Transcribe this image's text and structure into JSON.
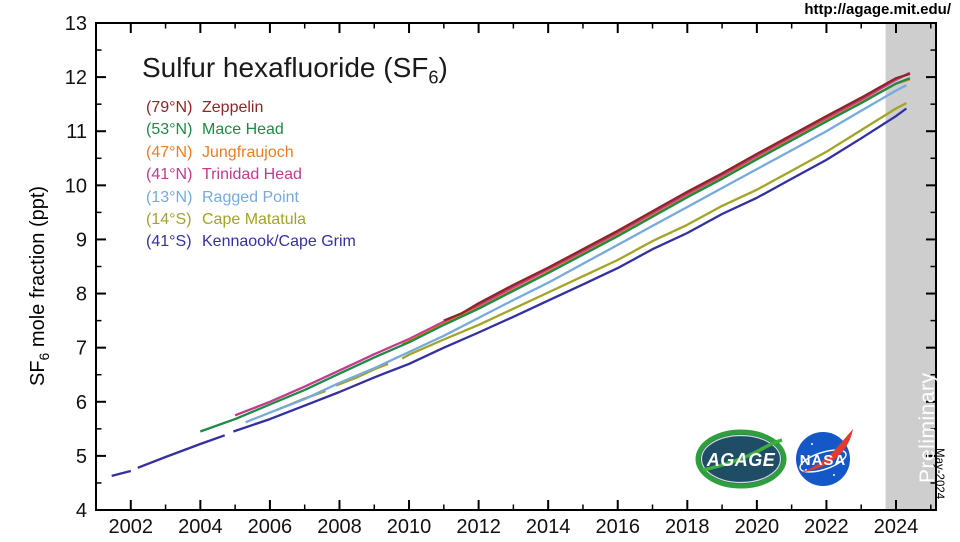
{
  "header": {
    "url": "http://agage.mit.edu/"
  },
  "title": {
    "pre": "Sulfur hexafluoride (SF",
    "sub": "6",
    "post": ")"
  },
  "ylabel": {
    "pre": "SF",
    "sub": "6",
    "post": " mole fraction (ppt)"
  },
  "watermark": {
    "preliminary": "Preliminary",
    "date_note": "May-2024"
  },
  "logos": {
    "agage": "AGAGE",
    "nasa": "NASA"
  },
  "chart_data": {
    "type": "line",
    "title": "Sulfur hexafluoride (SF6)",
    "xlabel": "",
    "ylabel": "SF6 mole fraction (ppt)",
    "xlim": [
      2001,
      2025.15
    ],
    "ylim": [
      4,
      13
    ],
    "grid": false,
    "legend_position": "upper-left-inside",
    "xticks": [
      2002,
      2004,
      2006,
      2008,
      2010,
      2012,
      2014,
      2016,
      2018,
      2020,
      2022,
      2024
    ],
    "xticks_minor": [
      2003,
      2005,
      2007,
      2009,
      2011,
      2013,
      2015,
      2017,
      2019,
      2021,
      2023,
      2025
    ],
    "yticks": [
      4,
      5,
      6,
      7,
      8,
      9,
      10,
      11,
      12,
      13
    ],
    "yticks_minor": [
      4.5,
      5.5,
      6.5,
      7.5,
      8.5,
      9.5,
      10.5,
      11.5,
      12.5
    ],
    "preliminary_band": {
      "from": 2023.7,
      "to": 2025.15,
      "color": "#cecece",
      "label": "Preliminary"
    },
    "series": [
      {
        "station": "Zeppelin",
        "lat_label": "(79°N)",
        "color": "#8e2525",
        "segments": [
          [
            [
              2011.0,
              7.5
            ],
            [
              2011.5,
              7.63
            ],
            [
              2012,
              7.82
            ],
            [
              2013,
              8.16
            ],
            [
              2014,
              8.48
            ],
            [
              2015,
              8.82
            ],
            [
              2016,
              9.16
            ],
            [
              2017,
              9.52
            ],
            [
              2018,
              9.88
            ],
            [
              2019,
              10.22
            ],
            [
              2020,
              10.58
            ],
            [
              2021,
              10.93
            ],
            [
              2022,
              11.28
            ],
            [
              2023,
              11.62
            ],
            [
              2023.5,
              11.8
            ],
            [
              2024,
              11.98
            ],
            [
              2024.4,
              12.06
            ]
          ]
        ]
      },
      {
        "station": "Mace Head",
        "lat_label": "(53°N)",
        "color": "#1d8a46",
        "segments": [
          [
            [
              2004,
              5.45
            ],
            [
              2005,
              5.68
            ],
            [
              2006,
              5.95
            ],
            [
              2007,
              6.22
            ],
            [
              2008,
              6.52
            ],
            [
              2009,
              6.82
            ],
            [
              2010,
              7.1
            ],
            [
              2011,
              7.42
            ],
            [
              2012,
              7.72
            ],
            [
              2013,
              8.05
            ],
            [
              2014,
              8.38
            ],
            [
              2015,
              8.72
            ],
            [
              2016,
              9.06
            ],
            [
              2017,
              9.42
            ],
            [
              2018,
              9.78
            ],
            [
              2019,
              10.12
            ],
            [
              2020,
              10.48
            ],
            [
              2021,
              10.83
            ],
            [
              2022,
              11.18
            ],
            [
              2023,
              11.52
            ],
            [
              2024,
              11.88
            ],
            [
              2024.4,
              11.98
            ]
          ]
        ]
      },
      {
        "station": "Jungfraujoch",
        "lat_label": "(47°N)",
        "color": "#e87e26",
        "segments": [
          [
            [
              2009.8,
              7.06
            ],
            [
              2010,
              7.12
            ],
            [
              2011,
              7.44
            ],
            [
              2012,
              7.74
            ],
            [
              2013,
              8.07
            ],
            [
              2014,
              8.4
            ],
            [
              2015,
              8.74
            ],
            [
              2016,
              9.08
            ],
            [
              2017,
              9.44
            ],
            [
              2018,
              9.8
            ],
            [
              2019,
              10.14
            ],
            [
              2020,
              10.5
            ],
            [
              2021,
              10.85
            ],
            [
              2022,
              11.2
            ],
            [
              2023,
              11.54
            ],
            [
              2024,
              11.88
            ],
            [
              2024.4,
              11.96
            ]
          ]
        ]
      },
      {
        "station": "Trinidad Head",
        "lat_label": "(41°N)",
        "color": "#c23b8c",
        "segments": [
          [
            [
              2005,
              5.75
            ],
            [
              2006,
              6.0
            ],
            [
              2007,
              6.28
            ],
            [
              2008,
              6.58
            ],
            [
              2009,
              6.88
            ],
            [
              2010,
              7.16
            ],
            [
              2011,
              7.48
            ],
            [
              2012,
              7.78
            ],
            [
              2013,
              8.12
            ],
            [
              2014,
              8.45
            ],
            [
              2015,
              8.78
            ],
            [
              2016,
              9.12
            ],
            [
              2017,
              9.48
            ],
            [
              2018,
              9.84
            ],
            [
              2019,
              10.18
            ],
            [
              2020,
              10.54
            ],
            [
              2021,
              10.89
            ],
            [
              2022,
              11.24
            ],
            [
              2023,
              11.58
            ],
            [
              2024,
              11.95
            ],
            [
              2024.4,
              12.08
            ]
          ]
        ]
      },
      {
        "station": "Ragged Point",
        "lat_label": "(13°N)",
        "color": "#76aadd",
        "segments": [
          [
            [
              2005.3,
              5.62
            ],
            [
              2006,
              5.8
            ],
            [
              2007,
              6.05
            ],
            [
              2008,
              6.35
            ],
            [
              2009,
              6.62
            ],
            [
              2010,
              6.92
            ],
            [
              2011,
              7.22
            ],
            [
              2012,
              7.55
            ],
            [
              2013,
              7.88
            ],
            [
              2014,
              8.2
            ],
            [
              2015,
              8.55
            ],
            [
              2016,
              8.9
            ],
            [
              2017,
              9.25
            ],
            [
              2018,
              9.6
            ],
            [
              2019,
              9.95
            ],
            [
              2020,
              10.3
            ],
            [
              2021,
              10.65
            ],
            [
              2022,
              11.0
            ],
            [
              2023,
              11.38
            ],
            [
              2024,
              11.75
            ],
            [
              2024.3,
              11.85
            ]
          ]
        ]
      },
      {
        "station": "Cape Matatula",
        "lat_label": "(14°S)",
        "color": "#a3a426",
        "segments": [
          [
            [
              2006.2,
              5.85
            ],
            [
              2007,
              6.06
            ],
            [
              2007.6,
              6.2
            ]
          ],
          [
            [
              2007.9,
              6.3
            ],
            [
              2008.5,
              6.45
            ],
            [
              2009,
              6.6
            ],
            [
              2009.4,
              6.7
            ]
          ],
          [
            [
              2009.8,
              6.8
            ],
            [
              2010,
              6.87
            ],
            [
              2011,
              7.15
            ],
            [
              2012,
              7.42
            ],
            [
              2013,
              7.72
            ],
            [
              2014,
              8.02
            ],
            [
              2015,
              8.32
            ],
            [
              2016,
              8.62
            ],
            [
              2017,
              8.97
            ],
            [
              2018,
              9.27
            ],
            [
              2019,
              9.62
            ],
            [
              2020,
              9.92
            ],
            [
              2021,
              10.27
            ],
            [
              2022,
              10.62
            ],
            [
              2023,
              11.02
            ],
            [
              2024,
              11.42
            ],
            [
              2024.3,
              11.52
            ]
          ]
        ]
      },
      {
        "station": "Kennaook/Cape Grim",
        "lat_label": "(41°S)",
        "color": "#33309f",
        "segments": [
          [
            [
              2001.45,
              4.63
            ],
            [
              2002.0,
              4.72
            ]
          ],
          [
            [
              2002.2,
              4.78
            ],
            [
              2003,
              4.98
            ],
            [
              2004,
              5.22
            ],
            [
              2004.7,
              5.38
            ]
          ],
          [
            [
              2004.95,
              5.45
            ],
            [
              2006,
              5.68
            ],
            [
              2007,
              5.93
            ],
            [
              2008,
              6.18
            ],
            [
              2009,
              6.45
            ],
            [
              2010,
              6.7
            ],
            [
              2011,
              7.0
            ],
            [
              2012,
              7.28
            ],
            [
              2013,
              7.57
            ],
            [
              2014,
              7.87
            ],
            [
              2015,
              8.17
            ],
            [
              2016,
              8.47
            ],
            [
              2017,
              8.82
            ],
            [
              2018,
              9.12
            ],
            [
              2019,
              9.47
            ],
            [
              2020,
              9.77
            ],
            [
              2021,
              10.12
            ],
            [
              2022,
              10.47
            ],
            [
              2023,
              10.87
            ],
            [
              2024,
              11.28
            ],
            [
              2024.3,
              11.42
            ]
          ]
        ]
      }
    ]
  }
}
